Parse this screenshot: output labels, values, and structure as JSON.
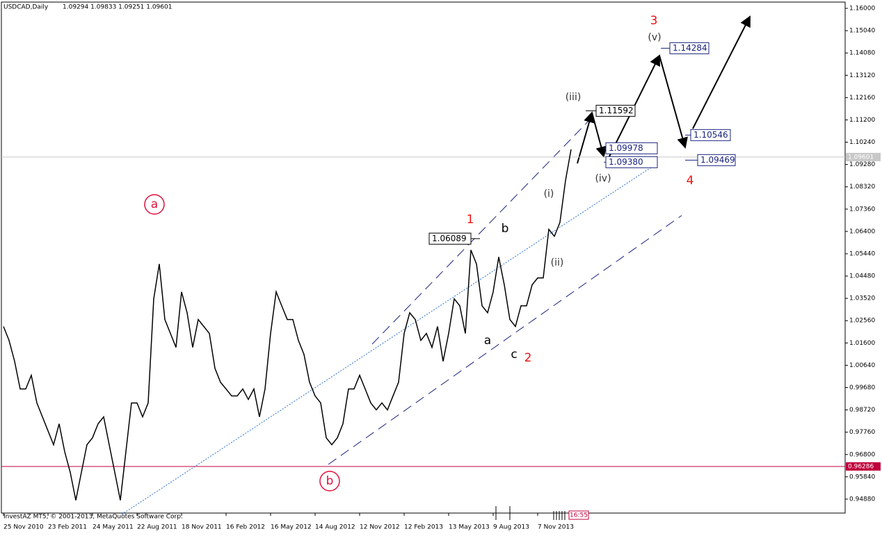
{
  "chart_data": {
    "type": "line",
    "symbol": "USDCAD,Daily",
    "ohlc": "1.09294 1.09833 1.09251 1.09601",
    "copyright": "InvestAZ MT5, © 2001-2013, MetaQuotes Software Corp.",
    "time_label": "16:55",
    "ylim": [
      0.9428,
      1.1627
    ],
    "yticks": [
      {
        "value": 0.9488,
        "label": "0.94880"
      },
      {
        "value": 0.9584,
        "label": "0.95840"
      },
      {
        "value": 0.968,
        "label": "0.96800"
      },
      {
        "value": 0.9776,
        "label": "0.97760"
      },
      {
        "value": 0.9872,
        "label": "0.98720"
      },
      {
        "value": 0.9968,
        "label": "0.99680"
      },
      {
        "value": 1.0064,
        "label": "1.00640"
      },
      {
        "value": 1.016,
        "label": "1.01600"
      },
      {
        "value": 1.0256,
        "label": "1.02560"
      },
      {
        "value": 1.0352,
        "label": "1.03520"
      },
      {
        "value": 1.0448,
        "label": "1.04480"
      },
      {
        "value": 1.0544,
        "label": "1.05440"
      },
      {
        "value": 1.064,
        "label": "1.06400"
      },
      {
        "value": 1.0736,
        "label": "1.07360"
      },
      {
        "value": 1.0832,
        "label": "1.08320"
      },
      {
        "value": 1.0928,
        "label": "1.09280"
      },
      {
        "value": 1.1024,
        "label": "1.10240"
      },
      {
        "value": 1.112,
        "label": "1.11200"
      },
      {
        "value": 1.1216,
        "label": "1.12160"
      },
      {
        "value": 1.1312,
        "label": "1.13120"
      },
      {
        "value": 1.1408,
        "label": "1.14080"
      },
      {
        "value": 1.1504,
        "label": "1.15040"
      },
      {
        "value": 1.16,
        "label": "1.16000"
      }
    ],
    "categories": [
      "25 Nov 2010",
      null,
      null,
      null,
      null,
      null,
      null,
      null,
      "23 Feb 2011",
      null,
      null,
      null,
      null,
      null,
      null,
      null,
      "24 May 2011",
      null,
      null,
      null,
      null,
      null,
      null,
      null,
      "22 Aug 2011",
      null,
      null,
      null,
      null,
      null,
      null,
      null,
      "18 Nov 2011",
      null,
      null,
      null,
      null,
      null,
      null,
      null,
      "16 Feb 2012",
      null,
      null,
      null,
      null,
      null,
      null,
      null,
      "16 May 2012",
      null,
      null,
      null,
      null,
      null,
      null,
      null,
      "14 Aug 2012",
      null,
      null,
      null,
      null,
      null,
      null,
      null,
      "12 Nov 2012",
      null,
      null,
      null,
      null,
      null,
      null,
      null,
      "12 Feb 2013",
      null,
      null,
      null,
      null,
      null,
      null,
      null,
      "13 May 2013",
      null,
      null,
      null,
      null,
      null,
      null,
      null,
      "9 Aug 2013",
      null,
      null,
      null,
      null,
      null,
      null,
      null,
      "7 Nov 2013",
      null,
      null,
      null,
      null,
      null,
      null
    ],
    "series": [
      {
        "name": "USDCAD",
        "color": "#000000",
        "values": [
          1.0231,
          1.0171,
          1.0081,
          0.9962,
          0.9962,
          1.0021,
          0.9902,
          0.9842,
          0.9782,
          0.9722,
          0.9812,
          0.9692,
          0.9603,
          0.9483,
          0.9603,
          0.9722,
          0.9752,
          0.9812,
          0.9842,
          0.9722,
          0.9603,
          0.9483,
          0.9692,
          0.9902,
          0.9902,
          0.9842,
          0.9902,
          1.035,
          1.05,
          1.0261,
          1.0201,
          1.0141,
          1.038,
          1.029,
          1.0141,
          1.0261,
          1.0231,
          1.0201,
          1.0051,
          0.9991,
          0.9962,
          0.9932,
          0.9932,
          0.9962,
          0.9917,
          0.9962,
          0.9842,
          0.9962,
          1.0201,
          1.038,
          1.032,
          1.0261,
          1.0261,
          1.0171,
          1.0111,
          0.9991,
          0.9932,
          0.9902,
          0.9752,
          0.9722,
          0.9752,
          0.9812,
          0.9962,
          0.9962,
          1.0021,
          0.9962,
          0.9902,
          0.9872,
          0.9902,
          0.9872,
          0.9932,
          0.9991,
          1.0201,
          1.029,
          1.0261,
          1.0171,
          1.0201,
          1.0141,
          1.0231,
          1.0081,
          1.0201,
          1.035,
          1.032,
          1.0201,
          1.056,
          1.05,
          1.032,
          1.029,
          1.038,
          1.053,
          1.041,
          1.0261,
          1.0231,
          1.032,
          1.032,
          1.041,
          1.044,
          1.044,
          1.0649,
          1.0619,
          1.0679,
          1.0859,
          1.0993
        ]
      }
    ],
    "hlines": [
      {
        "value": 0.96286,
        "label": "0.96286",
        "color": "#c0003c"
      },
      {
        "value": 1.09601,
        "label": "1.09601",
        "color": "#c8c8c8"
      }
    ],
    "wave_labels": [
      "a",
      "b",
      "1",
      "2",
      "3",
      "4",
      "(i)",
      "(ii)",
      "(iii)",
      "(iv)",
      "(v)",
      "a",
      "b",
      "c"
    ],
    "price_labels": [
      1.06089,
      1.11592,
      1.09978,
      {
        "value": 1.0938,
        "label": "1.09380"
      },
      1.14284,
      1.10546,
      1.09469
    ]
  }
}
